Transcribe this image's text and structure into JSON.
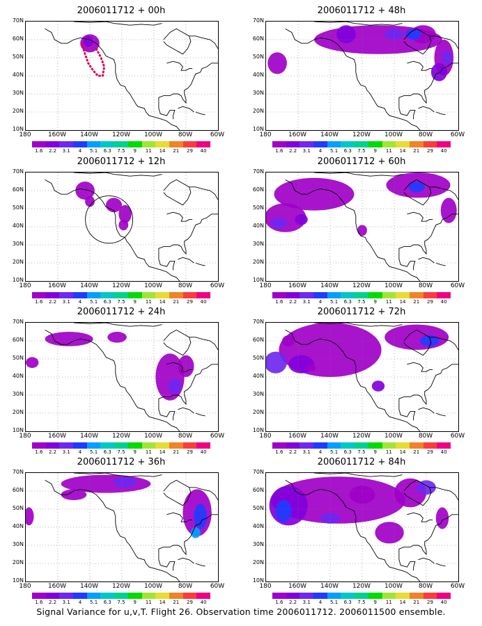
{
  "panels": [
    {
      "title": "2006011712 + 00h"
    },
    {
      "title": "2006011712 + 48h"
    },
    {
      "title": "2006011712 + 12h"
    },
    {
      "title": "2006011712 + 60h"
    },
    {
      "title": "2006011712 + 24h"
    },
    {
      "title": "2006011712 + 72h"
    },
    {
      "title": "2006011712 + 36h"
    },
    {
      "title": "2006011712 + 84h"
    }
  ],
  "lat_labels": [
    "70N",
    "60N",
    "50N",
    "40N",
    "30N",
    "20N",
    "10N"
  ],
  "lon_labels": [
    "180",
    "160W",
    "140W",
    "120W",
    "100W",
    "80W",
    "60W"
  ],
  "colorbar": {
    "labels": [
      "1.6",
      "2.2",
      "3.1",
      "4",
      "5.1",
      "6.3",
      "7.5",
      "9",
      "11",
      "14",
      "21",
      "29",
      "40"
    ],
    "colors": [
      "#a000c8",
      "#8200dc",
      "#6e28f0",
      "#1e3cff",
      "#00a0ff",
      "#00c8c8",
      "#00d28c",
      "#00dc00",
      "#a0e632",
      "#e6dc32",
      "#f08228",
      "#fa3c3c",
      "#f00082"
    ]
  },
  "footer": "Signal Variance for u,v,T. Flight 26. Observation time 2006011712. 2006011500 ensemble."
}
